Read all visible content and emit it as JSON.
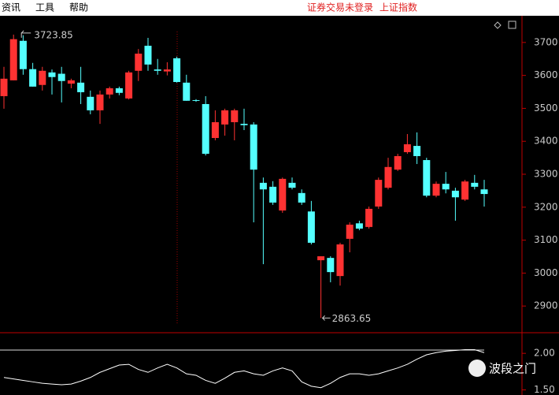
{
  "menu": [
    "资讯",
    "工具",
    "帮助"
  ],
  "status": [
    "证券交易未登录",
    "上证指数"
  ],
  "watermark": "波段之门",
  "chart_data": [
    {
      "type": "candlestick",
      "opens": [
        3537,
        3585,
        3705,
        3619,
        3571,
        3609,
        3605,
        3575,
        3578,
        3535,
        3494,
        3542,
        3561,
        3530,
        3614,
        3690,
        3618,
        3612,
        3652,
        3578,
        3525,
        3513,
        3410,
        3451,
        3458,
        3453,
        3451,
        3274,
        3262,
        3190,
        3274,
        3243,
        3187,
        3039,
        3046,
        2991,
        3104,
        3151,
        3140,
        3202,
        3259,
        3314,
        3367,
        3386,
        3343,
        3235,
        3271,
        3250,
        3223,
        3274,
        3254
      ],
      "highs": [
        3626,
        3723.85,
        3722,
        3638,
        3626,
        3618,
        3626,
        3590,
        3626,
        3554,
        3554,
        3566,
        3566,
        3614,
        3680,
        3714,
        3650,
        3640,
        3657,
        3602,
        3528,
        3537,
        3494,
        3499,
        3499,
        3499,
        3458,
        3290,
        3279,
        3290,
        3290,
        3254,
        3219,
        3051,
        3051,
        3092,
        3154,
        3159,
        3202,
        3290,
        3350,
        3362,
        3422,
        3427,
        3350,
        3278,
        3307,
        3259,
        3283,
        3298,
        3283
      ],
      "lows": [
        3499,
        3585,
        3602,
        3566,
        3554,
        3542,
        3518,
        3561,
        3513,
        3482,
        3453,
        3530,
        3540,
        3527,
        3583,
        3614,
        3602,
        3600,
        3578,
        3523,
        3520,
        3357,
        3403,
        3417,
        3403,
        3434,
        3154,
        3027,
        3207,
        3183,
        3254,
        3207,
        3087,
        2863.65,
        2972,
        2962,
        3063,
        3130,
        3135,
        3195,
        3254,
        3310,
        3362,
        3331,
        3230,
        3230,
        3242,
        3159,
        3219,
        3254,
        3202
      ],
      "closes": [
        3590,
        3710,
        3619,
        3566,
        3614,
        3595,
        3583,
        3585,
        3549,
        3494,
        3542,
        3561,
        3547,
        3609,
        3666,
        3633,
        3614,
        3618,
        3580,
        3523,
        3523,
        3362,
        3458,
        3494,
        3494,
        3449,
        3314,
        3254,
        3214,
        3286,
        3259,
        3214,
        3092,
        3051,
        3003,
        3087,
        3147,
        3135,
        3195,
        3283,
        3322,
        3355,
        3391,
        3355,
        3235,
        3271,
        3254,
        3230,
        3278,
        3262,
        3240
      ],
      "up_color": "#ff3232",
      "down_color": "#54ffff",
      "annotations": [
        "3723.85",
        "2863.65"
      ],
      "ylim": [
        2819,
        3781
      ],
      "yticks": [
        2900,
        3000,
        3100,
        3200,
        3300,
        3400,
        3500,
        3600,
        3700
      ]
    },
    {
      "type": "line",
      "values": [
        1.67,
        1.65,
        1.63,
        1.61,
        1.59,
        1.58,
        1.57,
        1.58,
        1.62,
        1.67,
        1.74,
        1.79,
        1.84,
        1.85,
        1.78,
        1.74,
        1.8,
        1.85,
        1.8,
        1.72,
        1.7,
        1.63,
        1.59,
        1.66,
        1.74,
        1.76,
        1.72,
        1.7,
        1.76,
        1.8,
        1.76,
        1.61,
        1.55,
        1.53,
        1.59,
        1.67,
        1.72,
        1.72,
        1.7,
        1.72,
        1.76,
        1.8,
        1.85,
        1.92,
        1.98,
        2.01,
        2.03,
        2.04,
        2.05,
        2.05,
        2.01
      ],
      "color": "#ffffff",
      "ylim": [
        1.43,
        2.25
      ],
      "yticks": [
        {
          "value": 2,
          "label": "2.00"
        },
        {
          "value": 1.5,
          "label": "1.50"
        }
      ]
    }
  ]
}
